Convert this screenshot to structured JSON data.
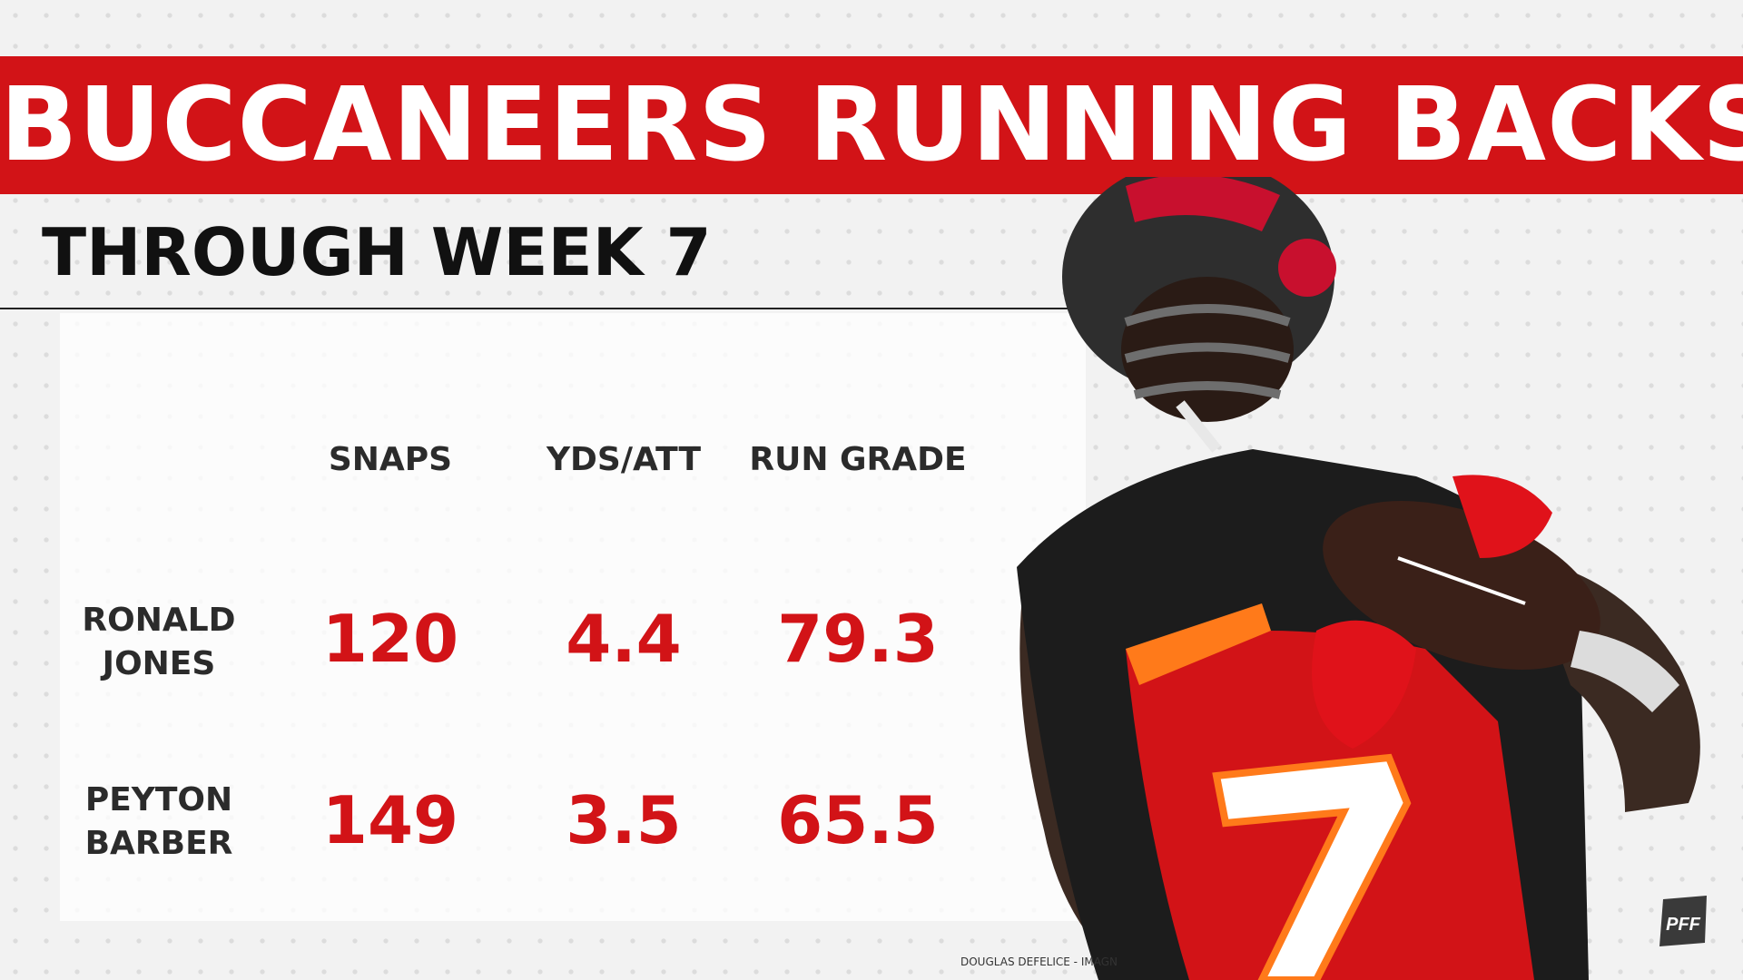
{
  "title": "BUCCANEERS RUNNING BACKS",
  "subtitle": "THROUGH WEEK 7",
  "columns": [
    "SNAPS",
    "YDS/ATT",
    "RUN GRADE"
  ],
  "players": [
    {
      "first": "RONALD",
      "last": "JONES",
      "snaps": "120",
      "yds_att": "4.4",
      "run_grade": "79.3"
    },
    {
      "first": "PEYTON",
      "last": "BARBER",
      "snaps": "149",
      "yds_att": "3.5",
      "run_grade": "65.5"
    }
  ],
  "photo_credit": "DOUGLAS DEFELICE - IMAGN",
  "logo_text": "PFF",
  "colors": {
    "brand_red": "#d21317",
    "pewter": "#2b2b2b",
    "orange": "#ff7a1a"
  }
}
